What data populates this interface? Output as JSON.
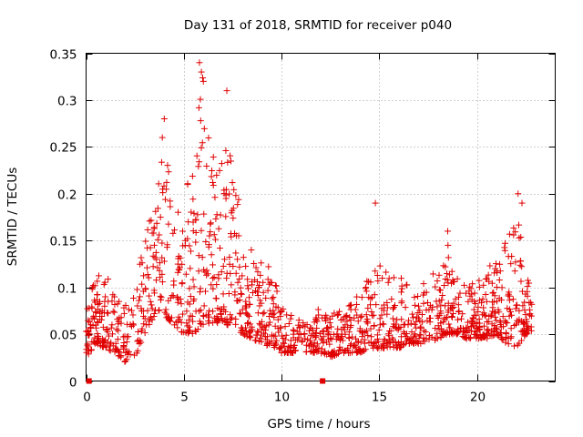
{
  "chart_data": {
    "type": "scatter",
    "title": "Day 131 of 2018, SRMTID for receiver p040",
    "xlabel": "GPS time / hours",
    "ylabel": "SRMTID / TECUs",
    "xlim": [
      0,
      24
    ],
    "ylim": [
      0,
      0.35
    ],
    "xticks": [
      0,
      5,
      10,
      15,
      20
    ],
    "xtick_labels": [
      "0",
      "5",
      "10",
      "15",
      "20"
    ],
    "yticks": [
      0,
      0.05,
      0.1,
      0.15,
      0.2,
      0.25,
      0.3,
      0.35
    ],
    "ytick_labels": [
      "0",
      "0.05",
      "0.1",
      "0.15",
      "0.2",
      "0.25",
      "0.3",
      "0.35"
    ],
    "grid": true,
    "marker": "plus",
    "color": "#e00000",
    "zero_markers_x": [
      0.15,
      12.1
    ],
    "envelope": [
      [
        0.0,
        0.025,
        0.09
      ],
      [
        0.5,
        0.04,
        0.11
      ],
      [
        1.0,
        0.035,
        0.12
      ],
      [
        1.5,
        0.03,
        0.09
      ],
      [
        2.0,
        0.02,
        0.08
      ],
      [
        2.5,
        0.025,
        0.1
      ],
      [
        3.0,
        0.05,
        0.15
      ],
      [
        3.5,
        0.07,
        0.2
      ],
      [
        4.0,
        0.07,
        0.27
      ],
      [
        4.5,
        0.06,
        0.2
      ],
      [
        5.0,
        0.05,
        0.2
      ],
      [
        5.5,
        0.05,
        0.25
      ],
      [
        6.0,
        0.06,
        0.33
      ],
      [
        6.5,
        0.06,
        0.25
      ],
      [
        7.0,
        0.06,
        0.25
      ],
      [
        7.5,
        0.06,
        0.24
      ],
      [
        8.0,
        0.05,
        0.18
      ],
      [
        8.5,
        0.045,
        0.14
      ],
      [
        9.0,
        0.04,
        0.13
      ],
      [
        9.5,
        0.035,
        0.12
      ],
      [
        10.0,
        0.03,
        0.08
      ],
      [
        10.5,
        0.03,
        0.07
      ],
      [
        11.0,
        0.03,
        0.07
      ],
      [
        11.5,
        0.03,
        0.07
      ],
      [
        12.0,
        0.03,
        0.08
      ],
      [
        12.5,
        0.025,
        0.07
      ],
      [
        13.0,
        0.03,
        0.08
      ],
      [
        13.5,
        0.03,
        0.09
      ],
      [
        14.0,
        0.03,
        0.09
      ],
      [
        14.5,
        0.035,
        0.12
      ],
      [
        15.0,
        0.035,
        0.13
      ],
      [
        15.5,
        0.035,
        0.12
      ],
      [
        16.0,
        0.035,
        0.11
      ],
      [
        16.5,
        0.04,
        0.12
      ],
      [
        17.0,
        0.04,
        0.1
      ],
      [
        17.5,
        0.04,
        0.11
      ],
      [
        18.0,
        0.045,
        0.12
      ],
      [
        18.5,
        0.05,
        0.15
      ],
      [
        19.0,
        0.05,
        0.11
      ],
      [
        19.5,
        0.045,
        0.1
      ],
      [
        20.0,
        0.045,
        0.11
      ],
      [
        20.5,
        0.045,
        0.12
      ],
      [
        21.0,
        0.05,
        0.13
      ],
      [
        21.5,
        0.04,
        0.15
      ],
      [
        22.0,
        0.035,
        0.19
      ],
      [
        22.5,
        0.05,
        0.12
      ],
      [
        22.8,
        0.05,
        0.09
      ]
    ],
    "extremes": [
      [
        5.8,
        0.34
      ],
      [
        6.0,
        0.32
      ],
      [
        5.9,
        0.33
      ],
      [
        7.2,
        0.31
      ],
      [
        4.0,
        0.28
      ],
      [
        3.9,
        0.26
      ],
      [
        14.8,
        0.19
      ],
      [
        22.1,
        0.2
      ],
      [
        22.3,
        0.19
      ],
      [
        18.5,
        0.16
      ]
    ]
  }
}
